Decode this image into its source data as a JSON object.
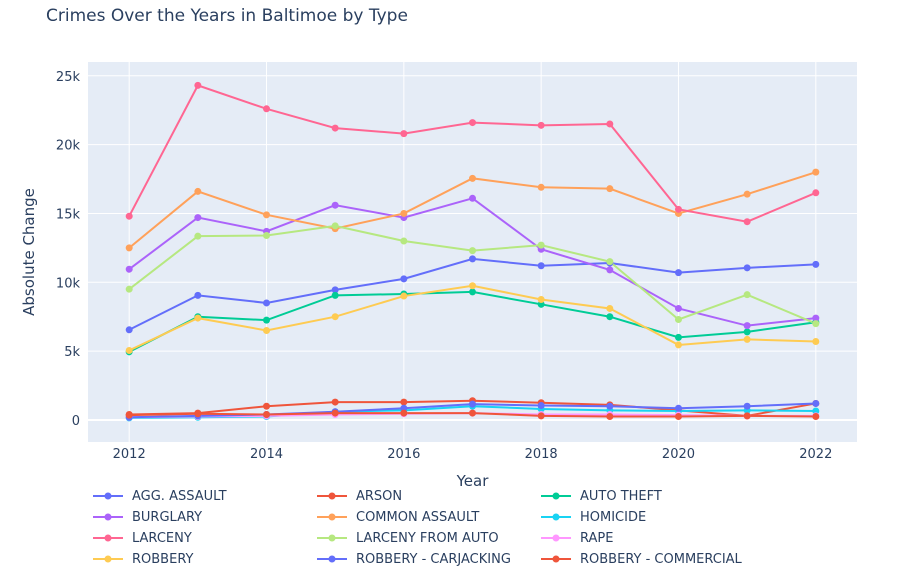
{
  "chart_data": {
    "type": "line",
    "title": "Crimes Over the Years in Baltimoe by Type",
    "xlabel": "Year",
    "ylabel": "Absolute Change",
    "x": [
      2012,
      2013,
      2014,
      2015,
      2016,
      2017,
      2018,
      2019,
      2020,
      2021,
      2022
    ],
    "xticks": [
      "2012",
      "2014",
      "2016",
      "2018",
      "2020",
      "2022"
    ],
    "yticks": [
      "0",
      "5k",
      "10k",
      "15k",
      "20k",
      "25k"
    ],
    "ylim": [
      -1600,
      26000
    ],
    "xlim": [
      2011.4,
      2022.6
    ],
    "grid": true,
    "legend_position": "bottom",
    "series": [
      {
        "name": "AGG. ASSAULT",
        "color": "#636efa",
        "values": [
          6550,
          9050,
          8500,
          9450,
          10250,
          11700,
          11200,
          11400,
          10700,
          11050,
          11300
        ]
      },
      {
        "name": "ARSON",
        "color": "#EF553B",
        "values": [
          400,
          500,
          1000,
          1300,
          1300,
          1400,
          1250,
          1100,
          700,
          300,
          1200
        ]
      },
      {
        "name": "AUTO THEFT",
        "color": "#00cc96",
        "values": [
          4950,
          7500,
          7250,
          9050,
          9150,
          9300,
          8400,
          7500,
          6000,
          6400,
          7100
        ]
      },
      {
        "name": "BURGLARY",
        "color": "#ab63fa",
        "values": [
          10950,
          14700,
          13700,
          15600,
          14700,
          16100,
          12400,
          10900,
          8100,
          6850,
          7400
        ]
      },
      {
        "name": "COMMON ASSAULT",
        "color": "#FFA15A",
        "values": [
          12500,
          16600,
          14900,
          13900,
          15000,
          17550,
          16900,
          16800,
          15000,
          16400,
          18000
        ]
      },
      {
        "name": "HOMICIDE",
        "color": "#19d3f3",
        "values": [
          150,
          200,
          250,
          600,
          700,
          1000,
          800,
          700,
          650,
          700,
          650
        ]
      },
      {
        "name": "LARCENY",
        "color": "#FF6692",
        "values": [
          14800,
          24300,
          22600,
          21200,
          20800,
          21600,
          21400,
          21500,
          15300,
          14400,
          16500
        ]
      },
      {
        "name": "LARCENY FROM AUTO",
        "color": "#B6E880",
        "values": [
          9500,
          13350,
          13400,
          14100,
          13000,
          12300,
          12700,
          11500,
          7300,
          9100,
          7000
        ]
      },
      {
        "name": "RAPE",
        "color": "#FF97FF",
        "values": [
          200,
          250,
          300,
          400,
          450,
          500,
          400,
          400,
          350,
          300,
          300
        ]
      },
      {
        "name": "ROBBERY",
        "color": "#FECB52",
        "values": [
          5050,
          7400,
          6500,
          7500,
          9000,
          9750,
          8750,
          8100,
          5450,
          5850,
          5700
        ]
      },
      {
        "name": "ROBBERY - CARJACKING",
        "color": "#636efa",
        "values": [
          200,
          300,
          400,
          600,
          850,
          1150,
          1050,
          1000,
          850,
          1000,
          1200
        ]
      },
      {
        "name": "ROBBERY - COMMERCIAL",
        "color": "#EF553B",
        "values": [
          350,
          450,
          400,
          500,
          500,
          500,
          300,
          250,
          250,
          300,
          250
        ]
      }
    ]
  }
}
